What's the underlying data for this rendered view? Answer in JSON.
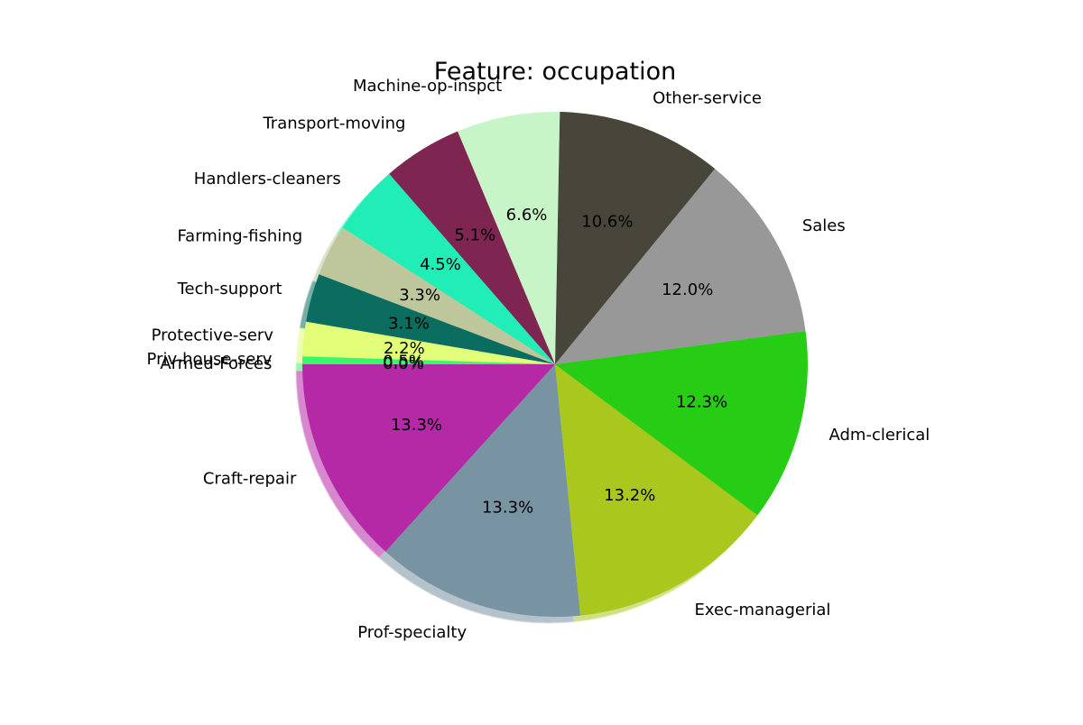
{
  "chart_data": {
    "type": "pie",
    "title": "Feature: occupation",
    "shadow": true,
    "start_angle_deg": 180,
    "direction": "counterclockwise",
    "slices": [
      {
        "label": "Craft-repair",
        "value": 13.3,
        "pct_text": "13.3%",
        "color": "#b528a6"
      },
      {
        "label": "Prof-specialty",
        "value": 13.3,
        "pct_text": "13.3%",
        "color": "#7893a1"
      },
      {
        "label": "Exec-managerial",
        "value": 13.2,
        "pct_text": "13.2%",
        "color": "#a9c71d"
      },
      {
        "label": "Adm-clerical",
        "value": 12.3,
        "pct_text": "12.3%",
        "color": "#27cd14"
      },
      {
        "label": "Sales",
        "value": 12.0,
        "pct_text": "12.0%",
        "color": "#989898"
      },
      {
        "label": "Other-service",
        "value": 10.6,
        "pct_text": "10.6%",
        "color": "#48453a"
      },
      {
        "label": "Machine-op-inspct",
        "value": 6.6,
        "pct_text": "6.6%",
        "color": "#c7f5c7"
      },
      {
        "label": "Transport-moving",
        "value": 5.1,
        "pct_text": "5.1%",
        "color": "#7f2551"
      },
      {
        "label": "Handlers-cleaners",
        "value": 4.5,
        "pct_text": "4.5%",
        "color": "#21edb6"
      },
      {
        "label": "Farming-fishing",
        "value": 3.3,
        "pct_text": "3.3%",
        "color": "#bec69b"
      },
      {
        "label": "Tech-support",
        "value": 3.1,
        "pct_text": "3.1%",
        "color": "#0b6c60"
      },
      {
        "label": "Protective-serv",
        "value": 2.2,
        "pct_text": "2.2%",
        "color": "#e2fd77"
      },
      {
        "label": "Priv-house-serv",
        "value": 0.5,
        "pct_text": "0.5%",
        "color": "#3af66a"
      },
      {
        "label": "Armed-Forces",
        "value": 0.0,
        "pct_text": "0.0%",
        "color": "#b4c1d8"
      }
    ]
  }
}
